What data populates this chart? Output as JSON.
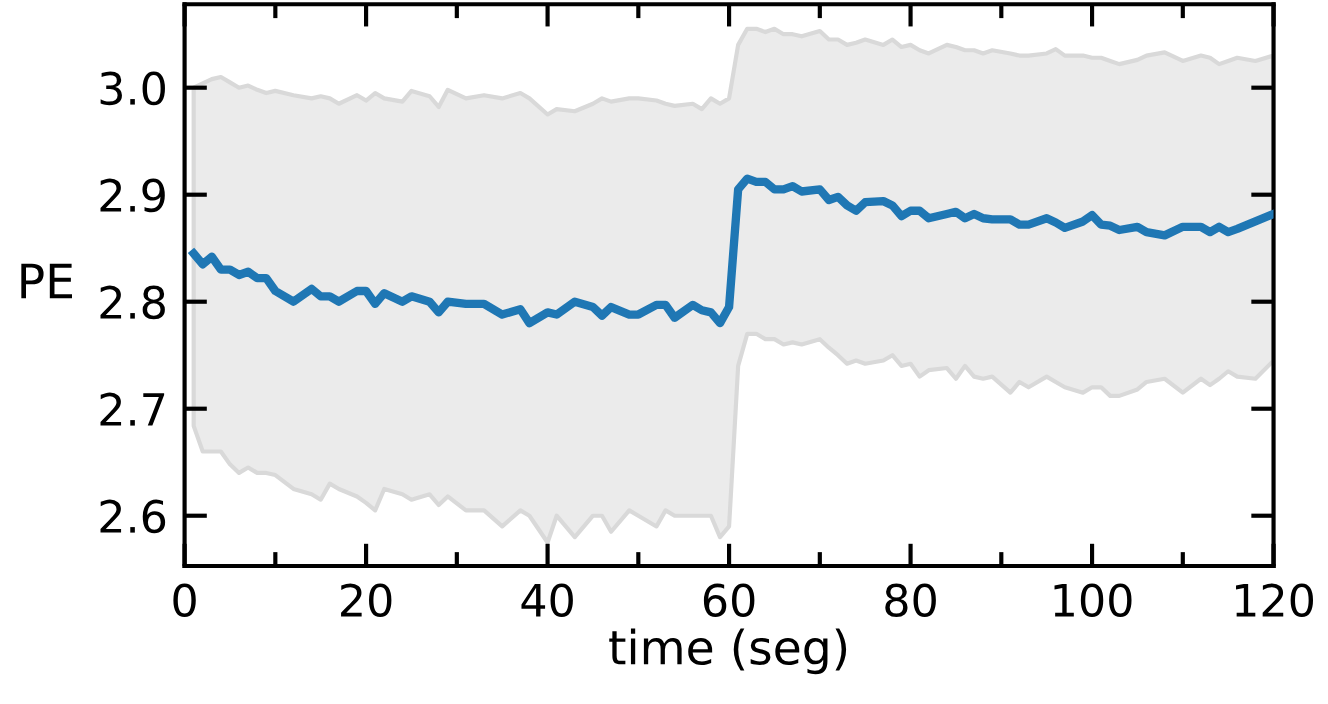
{
  "chart_data": {
    "type": "line",
    "xlabel": "time (seg)",
    "ylabel": "PE",
    "xlim": [
      0,
      120
    ],
    "ylim": [
      2.553,
      3.078
    ],
    "xticks": [
      0,
      {
        "value": 10,
        "label": null
      },
      20,
      {
        "value": 30,
        "label": null
      },
      40,
      {
        "value": 50,
        "label": null
      },
      60,
      {
        "value": 70,
        "label": null
      },
      80,
      {
        "value": 90,
        "label": null
      },
      100,
      {
        "value": 110,
        "label": null
      },
      120
    ],
    "yticks": [
      2.6,
      2.7,
      2.8,
      2.9,
      {
        "value": 3.0,
        "label": "3.0"
      }
    ],
    "grid": false,
    "marker": "none",
    "line_style": "solid",
    "series": [
      {
        "color": "#1f77b4",
        "x": [
          1,
          2,
          3,
          4,
          5,
          6,
          7,
          8,
          9,
          10,
          12,
          14,
          15,
          16,
          17,
          19,
          20,
          21,
          22,
          24,
          25,
          27,
          28,
          29,
          31,
          33,
          35,
          37,
          38,
          40,
          41,
          43,
          45,
          46,
          47,
          49,
          50,
          52,
          53,
          54,
          56,
          57,
          58,
          59,
          60,
          61,
          62,
          63,
          64,
          65,
          66,
          67,
          68,
          70,
          71,
          72,
          73,
          74,
          75,
          77,
          78,
          79,
          80,
          81,
          82,
          84,
          85,
          86,
          87,
          88,
          89,
          91,
          92,
          93,
          95,
          96,
          97,
          99,
          100,
          101,
          102,
          103,
          105,
          106,
          108,
          110,
          112,
          113,
          114,
          115,
          116,
          118,
          120
        ],
        "values": [
          2.845,
          2.835,
          2.842,
          2.83,
          2.83,
          2.825,
          2.828,
          2.822,
          2.822,
          2.81,
          2.8,
          2.812,
          2.805,
          2.805,
          2.8,
          2.81,
          2.81,
          2.798,
          2.808,
          2.8,
          2.805,
          2.8,
          2.79,
          2.8,
          2.798,
          2.798,
          2.788,
          2.793,
          2.78,
          2.79,
          2.788,
          2.8,
          2.795,
          2.787,
          2.795,
          2.788,
          2.788,
          2.797,
          2.797,
          2.785,
          2.797,
          2.792,
          2.79,
          2.78,
          2.795,
          2.905,
          2.915,
          2.912,
          2.912,
          2.905,
          2.905,
          2.908,
          2.903,
          2.905,
          2.895,
          2.898,
          2.89,
          2.885,
          2.893,
          2.894,
          2.89,
          2.88,
          2.885,
          2.885,
          2.878,
          2.882,
          2.884,
          2.878,
          2.882,
          2.878,
          2.877,
          2.877,
          2.872,
          2.872,
          2.878,
          2.874,
          2.869,
          2.875,
          2.881,
          2.872,
          2.871,
          2.867,
          2.87,
          2.865,
          2.862,
          2.87,
          2.87,
          2.865,
          2.87,
          2.865,
          2.868,
          2.875,
          2.882
        ],
        "upper": [
          3.0,
          3.004,
          3.008,
          3.01,
          3.005,
          3.0,
          3.002,
          2.998,
          2.995,
          2.997,
          2.993,
          2.99,
          2.992,
          2.99,
          2.985,
          2.993,
          2.988,
          2.995,
          2.99,
          2.987,
          2.997,
          2.992,
          2.982,
          2.998,
          2.99,
          2.993,
          2.99,
          2.995,
          2.99,
          2.975,
          2.98,
          2.978,
          2.985,
          2.99,
          2.987,
          2.99,
          2.99,
          2.988,
          2.985,
          2.983,
          2.985,
          2.98,
          2.99,
          2.985,
          2.99,
          3.04,
          3.055,
          3.055,
          3.052,
          3.055,
          3.05,
          3.05,
          3.048,
          3.053,
          3.045,
          3.045,
          3.04,
          3.042,
          3.045,
          3.04,
          3.045,
          3.038,
          3.04,
          3.035,
          3.032,
          3.04,
          3.038,
          3.035,
          3.035,
          3.032,
          3.035,
          3.032,
          3.03,
          3.03,
          3.032,
          3.036,
          3.03,
          3.03,
          3.028,
          3.028,
          3.025,
          3.022,
          3.026,
          3.03,
          3.033,
          3.025,
          3.03,
          3.028,
          3.022,
          3.025,
          3.028,
          3.025,
          3.03
        ],
        "lower": [
          2.684,
          2.66,
          2.66,
          2.66,
          2.648,
          2.64,
          2.645,
          2.64,
          2.64,
          2.638,
          2.625,
          2.62,
          2.615,
          2.63,
          2.625,
          2.618,
          2.612,
          2.605,
          2.625,
          2.62,
          2.615,
          2.62,
          2.61,
          2.618,
          2.605,
          2.605,
          2.59,
          2.605,
          2.6,
          2.575,
          2.6,
          2.58,
          2.6,
          2.6,
          2.585,
          2.605,
          2.6,
          2.59,
          2.605,
          2.6,
          2.6,
          2.6,
          2.6,
          2.58,
          2.59,
          2.74,
          2.77,
          2.77,
          2.765,
          2.765,
          2.76,
          2.762,
          2.76,
          2.765,
          2.757,
          2.75,
          2.742,
          2.745,
          2.742,
          2.745,
          2.75,
          2.74,
          2.742,
          2.73,
          2.736,
          2.738,
          2.728,
          2.74,
          2.73,
          2.728,
          2.73,
          2.715,
          2.725,
          2.72,
          2.73,
          2.725,
          2.72,
          2.715,
          2.72,
          2.72,
          2.712,
          2.712,
          2.718,
          2.725,
          2.728,
          2.715,
          2.728,
          2.722,
          2.728,
          2.735,
          2.73,
          2.728,
          2.745
        ]
      }
    ]
  }
}
